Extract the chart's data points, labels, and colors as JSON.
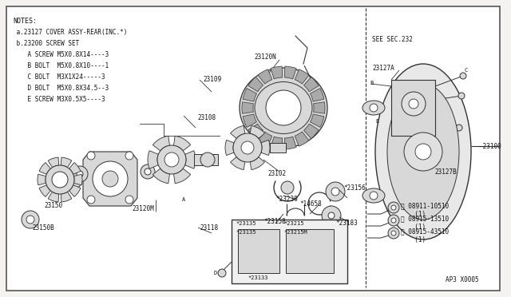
{
  "bg_color": "#f5f3ef",
  "border_color": "#666666",
  "text_color": "#111111",
  "dark": "#333333",
  "fig_width": 6.4,
  "fig_height": 3.72,
  "dpi": 100,
  "notes_lines": [
    "NOTES:",
    " a.23127 COVER ASSY-REAR(INC.*)",
    " b.23200 SCREW SET",
    "    A SCREW M5X0.8X14----3",
    "    B BOLT  M5X0.8X10----1",
    "    C BOLT  M3X1X24-----3",
    "    D BOLT  M5X0.8X34.5--3",
    "    E SCREW M3X0.5X5----3"
  ],
  "diagram_code": "AP3 X0005"
}
